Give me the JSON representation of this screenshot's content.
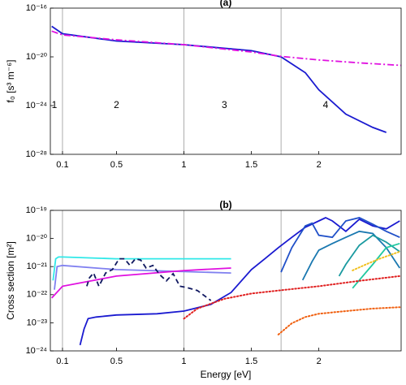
{
  "chart_data": [
    {
      "type": "line",
      "title": "(a)",
      "ylabel": "f₀ [s³ m⁻⁶]",
      "yscale": "log",
      "xlim": [
        0.01,
        2.61
      ],
      "xticks": [
        0.1,
        0.5,
        1,
        1.5,
        2
      ],
      "ylim": [
        1e-28,
        1e-16
      ],
      "yticks": [
        {
          "value": 1e-28,
          "label": "10⁻²⁸"
        },
        {
          "value": 1e-24,
          "label": "10⁻²⁴"
        },
        {
          "value": 1e-20,
          "label": "10⁻²⁰"
        },
        {
          "value": 1e-16,
          "label": "10⁻¹⁶"
        }
      ],
      "vlines": [
        0.1,
        1,
        1.72
      ],
      "annotations": [
        {
          "text": "1",
          "x": 0.04,
          "y": 1e-24
        },
        {
          "text": "2",
          "x": 0.5,
          "y": 1e-24
        },
        {
          "text": "3",
          "x": 1.3,
          "y": 1e-24
        },
        {
          "text": "4",
          "x": 2.05,
          "y": 1e-24
        }
      ],
      "series": [
        {
          "color": "#1a1ad0",
          "style": "solid",
          "x": [
            0.02,
            0.1,
            0.5,
            1.0,
            1.5,
            1.72,
            1.9,
            2.0,
            2.2,
            2.4,
            2.5
          ],
          "values": [
            3.2e-18,
            7.9e-19,
            2e-19,
            1e-19,
            3.2e-20,
            1e-20,
            5e-22,
            2e-23,
            2e-25,
            1.6e-26,
            6.3e-27
          ]
        },
        {
          "color": "#e010e0",
          "style": "dashdot",
          "x": [
            0.02,
            0.1,
            0.5,
            1.0,
            1.5,
            1.72,
            2.0,
            2.3,
            2.61
          ],
          "values": [
            1.3e-18,
            6.3e-19,
            2.5e-19,
            1e-19,
            2.5e-20,
            1.1e-20,
            5.6e-21,
            3.2e-21,
            2e-21
          ]
        }
      ]
    },
    {
      "type": "line",
      "title": "(b)",
      "xlabel": "Energy [eV]",
      "ylabel": "Cross section [m²]",
      "yscale": "log",
      "xlim": [
        0.01,
        2.61
      ],
      "xticks": [
        0.1,
        0.5,
        1,
        1.5,
        2
      ],
      "ylim": [
        1e-24,
        1e-19
      ],
      "yticks": [
        {
          "value": 1e-24,
          "label": "10⁻²⁴"
        },
        {
          "value": 1e-23,
          "label": "10⁻²³"
        },
        {
          "value": 1e-22,
          "label": "10⁻²²"
        },
        {
          "value": 1e-21,
          "label": "10⁻²¹"
        },
        {
          "value": 1e-20,
          "label": "10⁻²⁰"
        },
        {
          "value": 1e-19,
          "label": "10⁻¹⁹"
        }
      ],
      "vlines": [
        0.1,
        1,
        1.72
      ],
      "series": [
        {
          "color": "#30e8e8",
          "style": "solid",
          "x": [
            0.03,
            0.05,
            0.07,
            0.1,
            0.5,
            1.35
          ],
          "values": [
            3.2e-22,
            1.9e-21,
            2.2e-21,
            2.2e-21,
            1.9e-21,
            1.9e-21
          ]
        },
        {
          "color": "#8080f0",
          "style": "solid",
          "x": [
            0.04,
            0.06,
            0.1,
            0.5,
            1.35
          ],
          "values": [
            1.5e-22,
            1e-21,
            1.1e-21,
            7.8e-22,
            5.9e-22
          ]
        },
        {
          "color": "#e010e0",
          "style": "solid",
          "x": [
            0.02,
            0.1,
            0.5,
            1.0,
            1.35
          ],
          "values": [
            7.6e-23,
            2e-22,
            4.6e-22,
            7.2e-22,
            8.9e-22
          ]
        },
        {
          "color": "#101860",
          "style": "dashed",
          "x": [
            0.28,
            0.3,
            0.33,
            0.37,
            0.42,
            0.47,
            0.52,
            0.56,
            0.6,
            0.64,
            0.68,
            0.72,
            0.77,
            0.82,
            0.87,
            0.92,
            0.97,
            1.02,
            1.1,
            1.2
          ],
          "values": [
            2e-22,
            4e-22,
            5.9e-22,
            2e-22,
            5.9e-22,
            7.8e-22,
            1.9e-21,
            1.9e-21,
            1.1e-21,
            1.9e-21,
            1.7e-21,
            8.9e-22,
            1.1e-21,
            5.2e-22,
            3.1e-22,
            5.6e-22,
            2e-22,
            1.8e-22,
            1.4e-22,
            6.2e-23
          ]
        },
        {
          "color": "#1a1ad0",
          "style": "solid",
          "x": [
            0.23,
            0.26,
            0.29,
            0.35,
            0.5,
            0.8,
            1.0,
            1.2,
            1.35,
            1.5,
            1.6,
            1.7,
            1.8,
            1.9,
            2.0,
            2.05,
            2.1,
            2.2,
            2.3,
            2.4,
            2.5,
            2.6
          ],
          "values": [
            1.6e-24,
            6e-24,
            1.4e-23,
            1.6e-23,
            1.9e-23,
            2.1e-23,
            2.6e-23,
            4.5e-23,
            1.2e-22,
            7.8e-22,
            1.9e-21,
            4.7e-21,
            1.1e-20,
            2.5e-20,
            4.2e-20,
            5.5e-20,
            4.2e-20,
            1.8e-20,
            4.8e-20,
            2.8e-20,
            2.2e-20,
            4.2e-20
          ]
        },
        {
          "color": "#2050c8",
          "style": "solid",
          "x": [
            1.72,
            1.8,
            1.9,
            1.95,
            2.0,
            2.1,
            2.2,
            2.3,
            2.4,
            2.5,
            2.6
          ],
          "values": [
            6.3e-22,
            4.7e-21,
            2.8e-20,
            3.5e-20,
            1.3e-20,
            1.1e-20,
            4.2e-20,
            5.5e-20,
            3.2e-20,
            1.8e-20,
            1.1e-20
          ]
        },
        {
          "color": "#1a78b0",
          "style": "solid",
          "x": [
            1.88,
            1.95,
            2.0,
            2.1,
            2.2,
            2.3,
            2.4,
            2.5,
            2.6
          ],
          "values": [
            3.3e-22,
            1.5e-21,
            3.8e-21,
            6.6e-21,
            1.1e-20,
            1.8e-20,
            1.5e-20,
            4.7e-21,
            8.9e-22
          ]
        },
        {
          "color": "#1a9aa0",
          "style": "solid",
          "x": [
            2.15,
            2.2,
            2.3,
            2.4,
            2.5,
            2.6
          ],
          "values": [
            4.6e-22,
            1.2e-21,
            5.7e-21,
            1.3e-20,
            7.4e-21,
            3.4e-21
          ]
        },
        {
          "color": "#20c8a0",
          "style": "solid",
          "x": [
            2.25,
            2.3,
            2.4,
            2.5,
            2.6
          ],
          "values": [
            1.7e-22,
            3.3e-22,
            1.2e-21,
            4.7e-21,
            6.6e-21
          ]
        },
        {
          "color": "#e02020",
          "style": "dotted",
          "x": [
            1.0,
            1.1,
            1.3,
            1.5,
            1.7,
            2.0,
            2.3,
            2.6
          ],
          "values": [
            1.4e-23,
            3.2e-23,
            7.1e-23,
            1.1e-22,
            1.4e-22,
            2e-22,
            3.1e-22,
            4.6e-22
          ]
        },
        {
          "color": "#f0c020",
          "style": "dotted",
          "x": [
            2.25,
            2.35,
            2.45,
            2.6
          ],
          "values": [
            7.3e-22,
            1.2e-21,
            1.9e-21,
            3.4e-21
          ]
        },
        {
          "color": "#f06010",
          "style": "dotted",
          "x": [
            1.7,
            1.8,
            1.9,
            2.0,
            2.2,
            2.4,
            2.6
          ],
          "values": [
            3.8e-24,
            9.6e-24,
            1.6e-23,
            2.1e-23,
            2.6e-23,
            3.2e-23,
            3.6e-23
          ]
        }
      ]
    }
  ]
}
